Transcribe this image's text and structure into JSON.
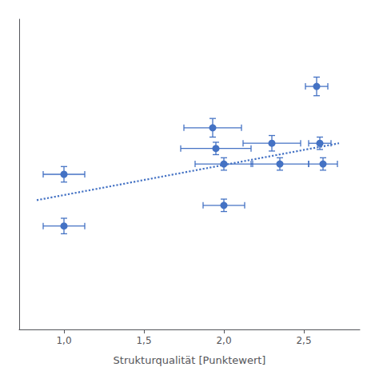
{
  "chart_data": {
    "type": "scatter",
    "xlabel": "Strukturqualität [Punktewert]",
    "series": [
      {
        "type": "scatter",
        "color": "#4472C4",
        "marker": "circle",
        "x": [
          1.0,
          1.0,
          1.93,
          1.95,
          2.0,
          2.0,
          2.3,
          2.35,
          2.58,
          2.6,
          2.62
        ],
        "values": [
          6.5,
          5.5,
          7.4,
          7.0,
          6.7,
          5.9,
          7.1,
          6.7,
          8.2,
          7.1,
          6.7
        ],
        "xerr": [
          0.13,
          0.13,
          0.18,
          0.22,
          0.18,
          0.13,
          0.18,
          0.18,
          0.07,
          0.07,
          0.09
        ],
        "yerr": [
          0.15,
          0.15,
          0.18,
          0.12,
          0.12,
          0.12,
          0.15,
          0.12,
          0.18,
          0.12,
          0.12
        ]
      },
      {
        "type": "line",
        "color": "#4472C4",
        "line_style": "dotted",
        "x": [
          0.83,
          2.72
        ],
        "values": [
          6.0,
          7.1
        ]
      }
    ],
    "xlim": [
      0.72,
      2.85
    ],
    "xticks": [
      {
        "value": 1.0,
        "label": "1,0"
      },
      {
        "value": 1.5,
        "label": "1,5"
      },
      {
        "value": 2.0,
        "label": "2,0"
      },
      {
        "value": 2.5,
        "label": "2,5"
      }
    ],
    "ylim": [
      3.5,
      9.5
    ],
    "grid": false,
    "tick_labels": "x"
  }
}
